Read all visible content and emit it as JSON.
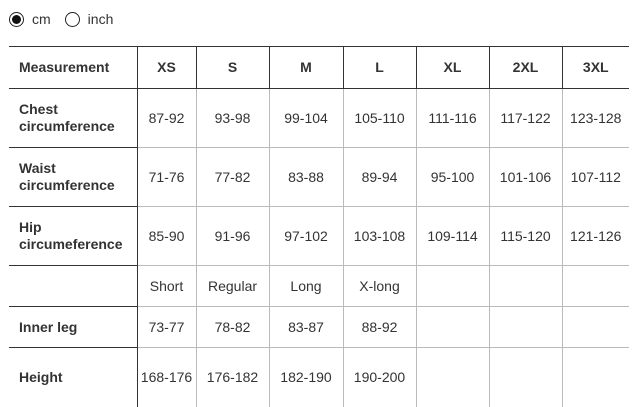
{
  "units": {
    "options": [
      {
        "label": "cm",
        "selected": true
      },
      {
        "label": "inch",
        "selected": false
      }
    ]
  },
  "table": {
    "headers": [
      "Measurement",
      "XS",
      "S",
      "M",
      "L",
      "XL",
      "2XL",
      "3XL"
    ],
    "rows": [
      {
        "label": "Chest circumference",
        "cells": [
          "87-92",
          "93-98",
          "99-104",
          "105-110",
          "111-116",
          "117-122",
          "123-128"
        ]
      },
      {
        "label": "Waist circumference",
        "cells": [
          "71-76",
          "77-82",
          "83-88",
          "89-94",
          "95-100",
          "101-106",
          "107-112"
        ]
      },
      {
        "label": "Hip circumeference",
        "cells": [
          "85-90",
          "91-96",
          "97-102",
          "103-108",
          "109-114",
          "115-120",
          "121-126"
        ]
      },
      {
        "label": "",
        "cells": [
          "Short",
          "Regular",
          "Long",
          "X-long",
          "",
          "",
          ""
        ]
      },
      {
        "label": "Inner leg",
        "cells": [
          "73-77",
          "78-82",
          "83-87",
          "88-92",
          "",
          "",
          ""
        ]
      },
      {
        "label": "Height",
        "cells": [
          "168-176",
          "176-182",
          "182-190",
          "190-200",
          "",
          "",
          ""
        ]
      }
    ]
  }
}
